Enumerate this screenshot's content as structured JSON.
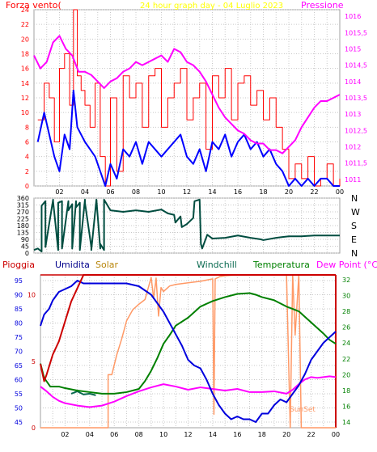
{
  "chart_data": [
    {
      "type": "line",
      "title": "24 hour graph day - 04 Luglio 2023",
      "left_label": "Forza vento(",
      "right_label": "Pressione",
      "x_ticks": [
        "02",
        "04",
        "06",
        "08",
        "10",
        "12",
        "14",
        "16",
        "18",
        "20",
        "22",
        "00"
      ],
      "y_left_ticks": [
        "0",
        "2",
        "4",
        "6",
        "8",
        "10",
        "12",
        "14",
        "16",
        "18",
        "20",
        "22",
        "24"
      ],
      "y_right_ticks": [
        "1011",
        "1011,5",
        "1012",
        "1012,5",
        "1013",
        "1013,5",
        "1014",
        "1014,5",
        "1015",
        "1015,5",
        "1016"
      ],
      "ylim_left": [
        0,
        24
      ],
      "ylim_right": [
        1010.8,
        1016.2
      ],
      "grid": true,
      "colors": {
        "gust": "#ff0000",
        "wind": "#0000ff",
        "pressure": "#ff00ff",
        "title": "#ffff00",
        "left_axis": "#ff0000",
        "right_axis": "#ff00ff"
      },
      "series": [
        {
          "name": "gust",
          "x": [
            0.3,
            0.8,
            1.2,
            1.6,
            2.0,
            2.4,
            2.8,
            3.1,
            3.4,
            3.7,
            4.0,
            4.4,
            4.8,
            5.2,
            5.6,
            6.0,
            6.5,
            7.0,
            7.5,
            8.0,
            8.5,
            9.0,
            9.5,
            10.0,
            10.5,
            11.0,
            11.5,
            12.0,
            12.5,
            13.0,
            13.5,
            14.0,
            14.5,
            15.0,
            15.5,
            16.0,
            16.5,
            17.0,
            17.5,
            18.0,
            18.5,
            19.0,
            19.5,
            20.0,
            20.5,
            21.0,
            21.5,
            22.0,
            22.5,
            23.0,
            23.5,
            24.0
          ],
          "y": [
            9,
            14,
            12,
            6,
            16,
            18,
            11,
            24,
            15,
            13,
            11,
            8,
            14,
            4,
            0,
            12,
            2,
            15,
            12,
            14,
            8,
            15,
            16,
            8,
            12,
            14,
            16,
            9,
            12,
            14,
            5,
            15,
            12,
            16,
            9,
            14,
            15,
            11,
            13,
            9,
            12,
            8,
            5,
            1,
            3,
            1,
            4,
            0,
            1,
            3,
            0,
            1
          ]
        },
        {
          "name": "wind",
          "x": [
            0.3,
            0.8,
            1.2,
            1.6,
            2.0,
            2.4,
            2.8,
            3.1,
            3.4,
            3.7,
            4.0,
            4.4,
            4.8,
            5.2,
            5.6,
            6.0,
            6.5,
            7.0,
            7.5,
            8.0,
            8.5,
            9.0,
            9.5,
            10.0,
            10.5,
            11.0,
            11.5,
            12.0,
            12.5,
            13.0,
            13.5,
            14.0,
            14.5,
            15.0,
            15.5,
            16.0,
            16.5,
            17.0,
            17.5,
            18.0,
            18.5,
            19.0,
            19.5,
            20.0,
            20.5,
            21.0,
            21.5,
            22.0,
            22.5,
            23.0,
            23.5,
            24.0
          ],
          "y": [
            6,
            10,
            7,
            4,
            2,
            7,
            5,
            13,
            8,
            7,
            6,
            5,
            4,
            2,
            0,
            3,
            1,
            5,
            4,
            6,
            3,
            6,
            5,
            4,
            5,
            6,
            7,
            4,
            3,
            5,
            2,
            6,
            5,
            7,
            4,
            6,
            7,
            5,
            6,
            4,
            5,
            3,
            2,
            0,
            1,
            0,
            1,
            0,
            1,
            1,
            0,
            0
          ]
        },
        {
          "name": "pressure",
          "x": [
            0.0,
            0.5,
            1.0,
            1.5,
            2.0,
            2.5,
            3.0,
            3.5,
            4.0,
            4.5,
            5.0,
            5.5,
            6.0,
            6.5,
            7.0,
            7.5,
            8.0,
            8.5,
            9.0,
            9.5,
            10.0,
            10.5,
            11.0,
            11.5,
            12.0,
            12.5,
            13.0,
            13.5,
            14.0,
            14.5,
            15.0,
            15.5,
            16.0,
            16.5,
            17.0,
            17.5,
            18.0,
            18.5,
            19.0,
            19.5,
            20.0,
            20.5,
            21.0,
            21.5,
            22.0,
            22.5,
            23.0,
            23.5,
            24.0
          ],
          "y": [
            1014.8,
            1014.4,
            1014.6,
            1015.2,
            1015.4,
            1015.0,
            1014.8,
            1014.3,
            1014.3,
            1014.2,
            1014.0,
            1013.8,
            1014.0,
            1014.1,
            1014.3,
            1014.4,
            1014.6,
            1014.5,
            1014.6,
            1014.7,
            1014.8,
            1014.6,
            1015.0,
            1014.9,
            1014.6,
            1014.5,
            1014.3,
            1014.0,
            1013.6,
            1013.2,
            1012.9,
            1012.7,
            1012.5,
            1012.4,
            1012.2,
            1012.1,
            1012.1,
            1011.9,
            1011.9,
            1011.8,
            1012.0,
            1012.2,
            1012.6,
            1012.9,
            1013.2,
            1013.4,
            1013.4,
            1013.5,
            1013.6
          ]
        }
      ]
    },
    {
      "type": "line",
      "x_ticks": [
        "02",
        "04",
        "06",
        "08",
        "10",
        "12",
        "14",
        "16",
        "18",
        "20",
        "22",
        "00"
      ],
      "y_left_ticks": [
        "0",
        "45",
        "90",
        "135",
        "180",
        "225",
        "270",
        "315",
        "360"
      ],
      "right_labels": [
        "N",
        "W",
        "S",
        "E",
        "N"
      ],
      "ylim": [
        0,
        360
      ],
      "colors": {
        "line": "#004d40"
      },
      "series": [
        {
          "name": "direction",
          "x": [
            0.0,
            0.3,
            0.6,
            0.6,
            0.9,
            0.9,
            1.5,
            1.5,
            1.9,
            1.9,
            2.2,
            2.2,
            2.7,
            2.7,
            3.0,
            3.0,
            3.3,
            3.3,
            3.6,
            3.6,
            4.0,
            4.0,
            4.5,
            4.5,
            4.9,
            4.9,
            5.2,
            5.2,
            5.5,
            5.5,
            6.0,
            7.0,
            8.0,
            9.0,
            10.0,
            10.5,
            11.0,
            11.1,
            11.5,
            11.6,
            12.0,
            12.5,
            12.6,
            13.0,
            13.1,
            13.2,
            13.6,
            14.0,
            15.0,
            16.0,
            17.0,
            17.8,
            18.0,
            19.0,
            19.5,
            20.0,
            21.0,
            22.0,
            23.0,
            24.0
          ],
          "y": [
            20,
            30,
            10,
            310,
            340,
            40,
            350,
            340,
            20,
            330,
            340,
            30,
            340,
            280,
            320,
            30,
            340,
            300,
            330,
            20,
            350,
            330,
            40,
            20,
            350,
            350,
            30,
            60,
            20,
            350,
            280,
            270,
            280,
            270,
            285,
            260,
            250,
            200,
            240,
            170,
            190,
            230,
            340,
            350,
            60,
            30,
            120,
            95,
            100,
            115,
            100,
            90,
            85,
            100,
            105,
            110,
            110,
            115,
            115,
            115
          ]
        }
      ]
    },
    {
      "type": "line",
      "header_labels": {
        "rain": "Pioggia",
        "humidity": "Umidita",
        "solar": "Solar",
        "windchill": "Windchill",
        "temperature": "Temperatura",
        "dewpoint": "Dew Point (°C)"
      },
      "x_ticks": [
        "02",
        "04",
        "06",
        "08",
        "10",
        "12",
        "14",
        "16",
        "18",
        "20",
        "22",
        "00"
      ],
      "y_humidity_ticks": [
        "45",
        "50",
        "55",
        "60",
        "65",
        "70",
        "75",
        "80",
        "85",
        "90",
        "95"
      ],
      "y_rain_ticks": [
        "0",
        "5",
        "10"
      ],
      "y_temp_ticks": [
        "14",
        "16",
        "18",
        "20",
        "22",
        "24",
        "26",
        "28",
        "30",
        "32"
      ],
      "ylim_humidity": [
        43,
        97
      ],
      "ylim_temp": [
        13.3,
        32.6
      ],
      "ylim_rain": [
        0,
        11.5
      ],
      "annotation": "SunSet",
      "colors": {
        "rain": "#cc0000",
        "humidity": "#0000dd",
        "solar": "#ff9966",
        "temperature": "#008000",
        "windchill": "#0a6a50",
        "dewpoint": "#ff00ff",
        "frame_right": "#cc0000"
      },
      "series": [
        {
          "name": "humidity",
          "x": [
            0.0,
            0.3,
            0.7,
            1.0,
            1.5,
            2.0,
            2.5,
            3.0,
            3.5,
            4.0,
            5.0,
            6.0,
            7.0,
            8.0,
            9.0,
            10.0,
            10.5,
            11.0,
            11.5,
            12.0,
            12.5,
            13.0,
            13.5,
            14.0,
            14.5,
            15.0,
            15.5,
            16.0,
            16.5,
            17.0,
            17.5,
            18.0,
            18.5,
            19.0,
            19.5,
            20.0,
            20.5,
            21.0,
            21.5,
            22.0,
            22.5,
            23.0,
            23.5,
            24.0
          ],
          "y": [
            79,
            83,
            85,
            88,
            91,
            92,
            93,
            95,
            94,
            94,
            94,
            94,
            94,
            93,
            90,
            84,
            80,
            76,
            72,
            67,
            65,
            64,
            60,
            55,
            51,
            48,
            46,
            47,
            46,
            46,
            45,
            48,
            48,
            51,
            53,
            52,
            55,
            58,
            62,
            67,
            70,
            73,
            75,
            77
          ]
        },
        {
          "name": "rain",
          "x": [
            0.0,
            0.3,
            0.5,
            1.0,
            1.5,
            2.0,
            2.5,
            3.0,
            3.5,
            4.0,
            5.0,
            6.0,
            8.0,
            10.0,
            12.0,
            14.0,
            16.0,
            18.0,
            20.0,
            22.0,
            24.0
          ],
          "y": [
            4.8,
            3.5,
            4.0,
            5.5,
            6.5,
            8.0,
            9.5,
            10.5,
            11.5,
            11.5,
            11.5,
            11.5,
            11.5,
            11.5,
            11.5,
            11.5,
            11.5,
            11.5,
            11.5,
            11.5,
            11.5
          ]
        },
        {
          "name": "temperature",
          "x": [
            0.0,
            0.3,
            0.8,
            1.5,
            2.0,
            3.0,
            4.0,
            5.0,
            6.0,
            7.0,
            8.0,
            8.5,
            9.0,
            9.5,
            10.0,
            10.5,
            11.0,
            12.0,
            13.0,
            14.0,
            15.0,
            16.0,
            17.0,
            17.5,
            18.0,
            18.5,
            19.0,
            19.5,
            20.0,
            20.5,
            21.0,
            21.5,
            22.0,
            22.5,
            23.0,
            23.5,
            24.0
          ],
          "y": [
            21.4,
            19.6,
            18.5,
            18.5,
            18.3,
            18.0,
            17.8,
            17.6,
            17.6,
            17.8,
            18.2,
            19.2,
            20.5,
            22.1,
            23.9,
            25.0,
            26.2,
            27.2,
            28.6,
            29.3,
            29.8,
            30.2,
            30.3,
            30.1,
            29.8,
            29.6,
            29.4,
            29.0,
            28.6,
            28.3,
            28.0,
            27.3,
            26.6,
            25.9,
            25.2,
            24.4,
            23.9
          ]
        },
        {
          "name": "windchill",
          "x": [
            2.5,
            3.0,
            3.5,
            4.0,
            4.5
          ],
          "y": [
            17.6,
            17.9,
            17.5,
            17.6,
            17.4
          ]
        },
        {
          "name": "dewpoint",
          "x": [
            0.0,
            0.5,
            1.0,
            1.5,
            2.0,
            3.0,
            4.0,
            5.0,
            6.0,
            7.0,
            8.0,
            9.0,
            10.0,
            11.0,
            12.0,
            13.0,
            14.0,
            15.0,
            16.0,
            17.0,
            18.0,
            19.0,
            20.0,
            20.5,
            21.0,
            21.5,
            22.0,
            22.5,
            23.0,
            23.5,
            24.0
          ],
          "y": [
            18.5,
            17.9,
            17.2,
            16.7,
            16.4,
            16.1,
            15.9,
            16.1,
            16.6,
            17.3,
            17.9,
            18.4,
            18.8,
            18.5,
            18.1,
            18.4,
            18.2,
            18.0,
            18.2,
            17.8,
            17.8,
            17.9,
            17.6,
            18.1,
            18.8,
            19.4,
            19.7,
            19.6,
            19.7,
            19.8,
            19.7
          ]
        },
        {
          "name": "solar",
          "x": [
            0.0,
            5.5,
            5.5,
            5.8,
            6.2,
            6.6,
            7.0,
            7.5,
            8.0,
            8.5,
            9.0,
            9.2,
            9.4,
            9.6,
            9.8,
            10.0,
            10.5,
            11.0,
            12.0,
            13.0,
            14.0,
            14.1,
            14.2,
            14.6,
            15.0,
            16.0,
            17.0,
            18.0,
            19.0,
            20.0,
            20.3,
            20.5,
            20.7,
            21.0,
            21.2,
            21.2,
            24.0
          ],
          "y": [
            13.3,
            13.3,
            20.0,
            20.0,
            22.5,
            24.5,
            26.8,
            28.2,
            28.9,
            29.5,
            32.3,
            29.6,
            32.2,
            27.4,
            31.0,
            30.5,
            31.2,
            31.4,
            31.6,
            31.8,
            32.1,
            15.0,
            32.1,
            32.4,
            32.5,
            32.6,
            32.6,
            32.6,
            32.6,
            32.6,
            13.3,
            32.6,
            25.0,
            32.6,
            13.3,
            13.3,
            13.3
          ]
        }
      ]
    }
  ]
}
